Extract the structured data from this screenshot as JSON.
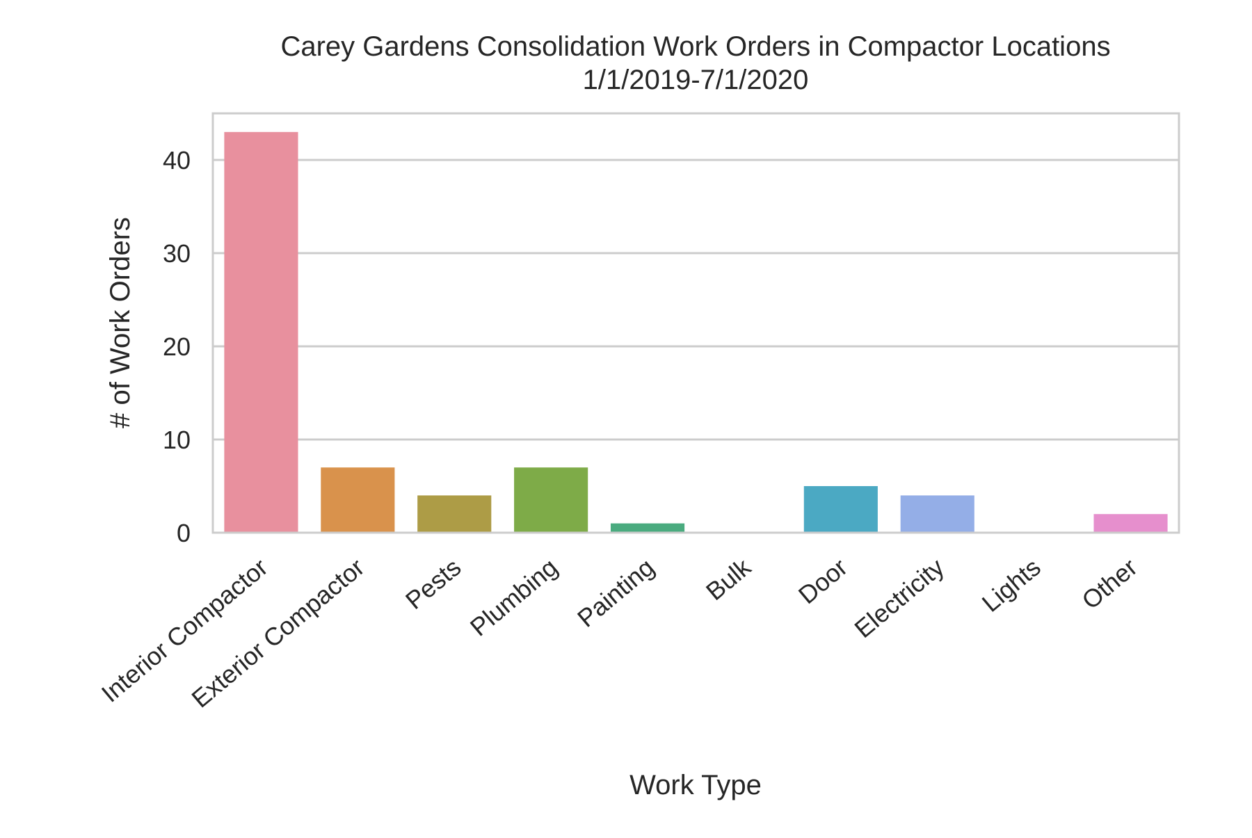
{
  "chart_data": {
    "type": "bar",
    "title": "Carey Gardens Consolidation Work Orders in Compactor Locations",
    "subtitle": "1/1/2019-7/1/2020",
    "xlabel": "Work Type",
    "ylabel": "# of Work Orders",
    "categories": [
      "Interior Compactor",
      "Exterior Compactor",
      "Pests",
      "Plumbing",
      "Painting",
      "Bulk",
      "Door",
      "Electricity",
      "Lights",
      "Other"
    ],
    "values": [
      43,
      7,
      4,
      7,
      1,
      0,
      5,
      4,
      0,
      2
    ],
    "colors": [
      "#e8909e",
      "#d9924c",
      "#ad9c46",
      "#7eab48",
      "#4aab7f",
      "#4eab96",
      "#4ba9c3",
      "#94aee7",
      "#c89ee4",
      "#e68fcd"
    ],
    "ylim": [
      0,
      45
    ],
    "yticks": [
      0,
      10,
      20,
      30,
      40
    ],
    "ytick_labels": [
      "0",
      "10",
      "20",
      "30",
      "40"
    ],
    "grid": "horizontal",
    "legend": "none"
  }
}
